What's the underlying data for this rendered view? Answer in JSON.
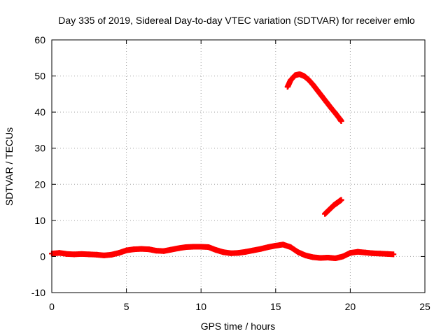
{
  "chart_data": {
    "type": "scatter",
    "title": "Day 335 of 2019, Sidereal Day-to-day VTEC variation (SDTVAR) for receiver emlo",
    "xlabel": "GPS time / hours",
    "ylabel": "SDTVAR / TECUs",
    "xlim": [
      0,
      25
    ],
    "ylim": [
      -10,
      60
    ],
    "x_ticks": [
      0,
      5,
      10,
      15,
      20,
      25
    ],
    "y_ticks": [
      -10,
      0,
      10,
      20,
      30,
      40,
      50,
      60
    ],
    "x_tick_labels": [
      "0",
      "5",
      "10",
      "15",
      "20",
      "25"
    ],
    "y_tick_labels": [
      "-10",
      "0",
      "10",
      "20",
      "30",
      "40",
      "50",
      "60"
    ],
    "grid": true,
    "marker": "+",
    "marker_color": "#ff0000",
    "series": [
      {
        "name": "main",
        "x": [
          0.0,
          0.5,
          1.0,
          1.5,
          2.0,
          2.5,
          3.0,
          3.5,
          4.0,
          4.5,
          5.0,
          5.5,
          6.0,
          6.5,
          7.0,
          7.5,
          8.0,
          8.5,
          9.0,
          9.5,
          10.0,
          10.5,
          11.0,
          11.5,
          12.0,
          12.5,
          13.0,
          13.5,
          14.0,
          14.5,
          15.0,
          15.5,
          16.0,
          16.5,
          17.0,
          17.5,
          18.0,
          18.5,
          19.0,
          19.5,
          20.0,
          20.5,
          21.0,
          21.5,
          22.0,
          22.5,
          22.9
        ],
        "y": [
          0.8,
          1.0,
          0.7,
          0.6,
          0.7,
          0.6,
          0.5,
          0.3,
          0.5,
          1.0,
          1.7,
          2.0,
          2.1,
          2.0,
          1.6,
          1.5,
          1.9,
          2.3,
          2.6,
          2.7,
          2.7,
          2.6,
          1.8,
          1.2,
          0.9,
          1.0,
          1.3,
          1.7,
          2.1,
          2.6,
          3.0,
          3.3,
          2.6,
          1.2,
          0.3,
          -0.2,
          -0.4,
          -0.3,
          -0.5,
          0.0,
          1.0,
          1.3,
          1.1,
          0.9,
          0.8,
          0.7,
          0.6
        ]
      },
      {
        "name": "arc-high",
        "x": [
          15.8,
          16.0,
          16.3,
          16.6,
          16.9,
          17.2,
          17.5,
          17.8,
          18.1,
          18.4,
          18.7,
          19.0,
          19.3,
          19.4
        ],
        "y": [
          47.0,
          48.8,
          50.2,
          50.5,
          50.0,
          49.0,
          47.6,
          46.0,
          44.4,
          42.8,
          41.2,
          39.7,
          38.1,
          37.5
        ]
      },
      {
        "name": "arc-low",
        "x": [
          18.3,
          18.5,
          18.7,
          18.9,
          19.1,
          19.3,
          19.4
        ],
        "y": [
          11.8,
          12.6,
          13.4,
          14.2,
          14.8,
          15.4,
          15.7
        ]
      }
    ]
  }
}
